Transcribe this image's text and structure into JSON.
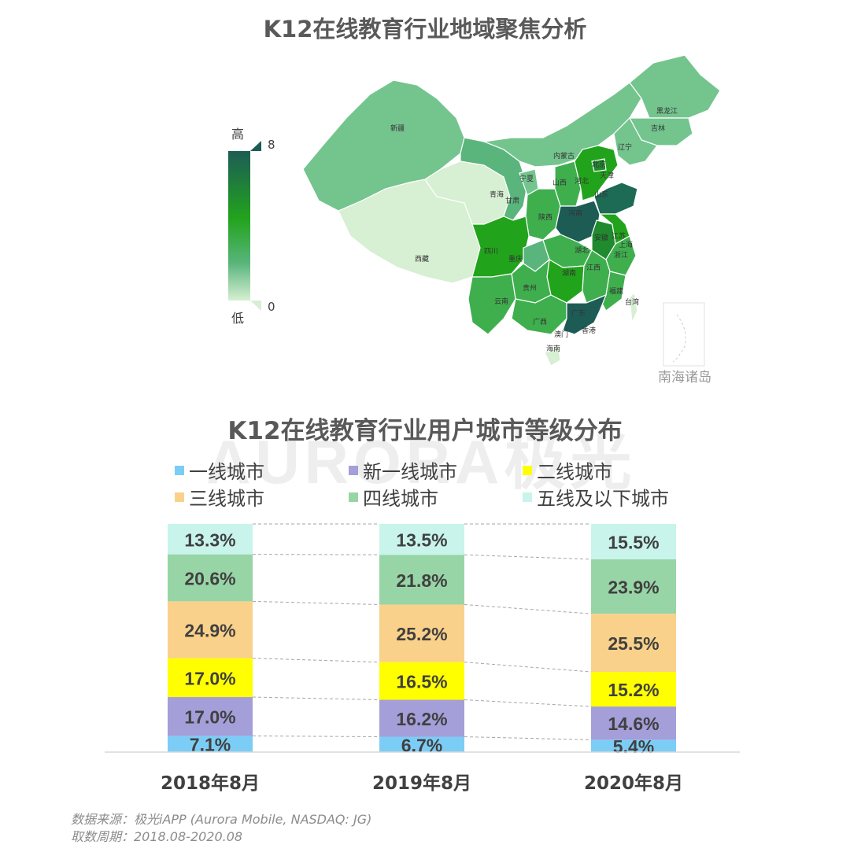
{
  "map_section": {
    "title": "K12在线教育行业地域聚焦分析",
    "scale": {
      "high_label": "高",
      "low_label": "低",
      "max_value": "8",
      "min_value": "0",
      "colors": [
        "#1d5c55",
        "#22a31c",
        "#59b57c",
        "#d7efd2"
      ]
    },
    "provinces": [
      "新疆",
      "西藏",
      "青海",
      "甘肃",
      "宁夏",
      "内蒙古",
      "黑龙江",
      "吉林",
      "辽宁",
      "北京",
      "天津",
      "河北",
      "山西",
      "山东",
      "河南",
      "陕西",
      "四川",
      "重庆",
      "湖北",
      "安徽",
      "江苏",
      "上海",
      "浙江",
      "湖南",
      "江西",
      "贵州",
      "云南",
      "广西",
      "广东",
      "福建",
      "台湾",
      "香港",
      "澳门",
      "海南"
    ],
    "islands_label": "南海诸岛"
  },
  "chart_title": "K12在线教育行业用户城市等级分布",
  "watermark": "AURORA极光",
  "chart_data": {
    "type": "bar",
    "stacked": true,
    "normalized_percent": true,
    "title": "K12在线教育行业用户城市等级分布",
    "categories": [
      "2018年8月",
      "2019年8月",
      "2020年8月"
    ],
    "series": [
      {
        "name": "一线城市",
        "color": "#7ccdf5",
        "values": [
          7.1,
          6.7,
          5.4
        ]
      },
      {
        "name": "新一线城市",
        "color": "#a49ed9",
        "values": [
          17.0,
          16.2,
          14.6
        ]
      },
      {
        "name": "二线城市",
        "color": "#ffff00",
        "values": [
          17.0,
          16.5,
          15.2
        ]
      },
      {
        "name": "三线城市",
        "color": "#fad18a",
        "values": [
          24.9,
          25.2,
          25.5
        ]
      },
      {
        "name": "四线城市",
        "color": "#98d5a6",
        "values": [
          20.6,
          21.8,
          23.9
        ]
      },
      {
        "name": "五线及以下城市",
        "color": "#c8f4ec",
        "values": [
          13.3,
          13.5,
          15.5
        ]
      }
    ],
    "value_labels": [
      [
        "7.1%",
        "6.7%",
        "5.4%"
      ],
      [
        "17.0%",
        "16.2%",
        "14.6%"
      ],
      [
        "17.0%",
        "16.5%",
        "15.2%"
      ],
      [
        "24.9%",
        "25.2%",
        "25.5%"
      ],
      [
        "20.6%",
        "21.8%",
        "23.9%"
      ],
      [
        "13.3%",
        "13.5%",
        "15.5%"
      ]
    ],
    "legend_placement": "top",
    "connector_lines": true
  },
  "footer": {
    "source": "数据来源：极光iAPP (Aurora Mobile, NASDAQ: JG)",
    "period": "取数周期：2018.08-2020.08"
  }
}
